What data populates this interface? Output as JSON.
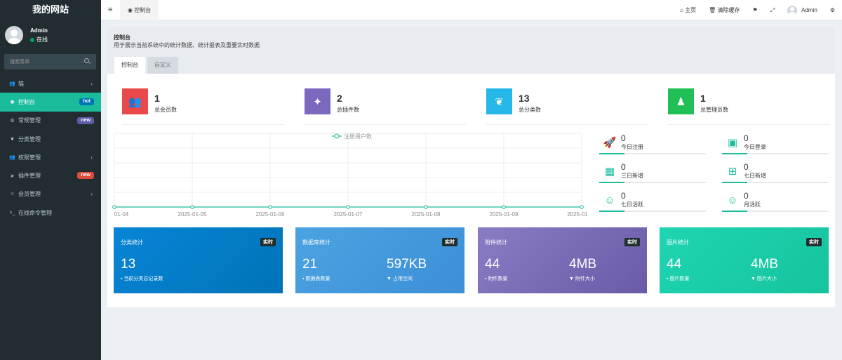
{
  "sidebar": {
    "logo": "我的网站",
    "user": {
      "name": "Admin",
      "status": "在线"
    },
    "search_placeholder": "搜索菜单",
    "items": [
      {
        "label": "猫",
        "icon": "users-icon",
        "glyph": "👥",
        "badge": "",
        "chevron": "‹"
      },
      {
        "label": "控制台",
        "icon": "dashboard-icon",
        "glyph": "◉",
        "badge": "hot",
        "badge_color": "#0073b7",
        "chevron": "",
        "active": true
      },
      {
        "label": "常规管理",
        "icon": "cogs-icon",
        "glyph": "⚙",
        "badge": "new",
        "badge_color": "#605ca8",
        "chevron": ""
      },
      {
        "label": "分类管理",
        "icon": "leaf-icon",
        "glyph": "❦",
        "badge": "",
        "chevron": ""
      },
      {
        "label": "权限管理",
        "icon": "group-icon",
        "glyph": "👥",
        "badge": "",
        "chevron": "‹"
      },
      {
        "label": "插件管理",
        "icon": "rocket-icon",
        "glyph": "➤",
        "badge": "new",
        "badge_color": "#dd4b39",
        "chevron": ""
      },
      {
        "label": "会员管理",
        "icon": "user-circle-icon",
        "glyph": "☺",
        "badge": "",
        "chevron": "‹"
      },
      {
        "label": "在线命令管理",
        "icon": "terminal-icon",
        "glyph": ">_",
        "badge": "",
        "chevron": ""
      }
    ]
  },
  "topbar": {
    "tab": "控制台",
    "home": "主页",
    "clear_cache": "清除缓存",
    "user": "Admin"
  },
  "header": {
    "title": "控制台",
    "desc": "用于展示当前系统中的统计数据、统计报表及重要实时数据",
    "tabs": [
      "控制台",
      "自定义"
    ]
  },
  "stats": [
    {
      "value": "1",
      "label": "总会员数",
      "color": "#e9494b",
      "icon": "users-icon",
      "glyph": "👥"
    },
    {
      "value": "2",
      "label": "总插件数",
      "color": "#7c69bf",
      "icon": "magic-icon",
      "glyph": "✦"
    },
    {
      "value": "13",
      "label": "总分类数",
      "color": "#24b7e8",
      "icon": "leaf-icon",
      "glyph": "❦"
    },
    {
      "value": "1",
      "label": "总管理员数",
      "color": "#20c057",
      "icon": "user-icon",
      "glyph": "♟"
    }
  ],
  "chart_data": {
    "type": "line",
    "legend": "注册用户数",
    "categories": [
      "2025-01-04",
      "2025-01-05",
      "2025-01-06",
      "2025-01-07",
      "2025-01-08",
      "2025-01-09",
      "2025-01-10"
    ],
    "tick_labels": [
      "01-04",
      "2025-01-05",
      "2025-01-06",
      "2025-01-07",
      "2025-01-08",
      "2025-01-09",
      "2025-01"
    ],
    "series": [
      {
        "name": "注册用户数",
        "values": [
          0,
          0,
          0,
          0,
          0,
          0,
          0
        ]
      }
    ],
    "color": "#18bc9c"
  },
  "mini_stats": [
    {
      "value": "0",
      "label": "今日注册",
      "icon": "rocket-icon",
      "glyph": "🚀"
    },
    {
      "value": "0",
      "label": "今日登录",
      "icon": "id-card-icon",
      "glyph": "▣"
    },
    {
      "value": "0",
      "label": "三日新增",
      "icon": "calendar-icon",
      "glyph": "▦"
    },
    {
      "value": "0",
      "label": "七日新增",
      "icon": "calendar-plus-icon",
      "glyph": "⊞"
    },
    {
      "value": "0",
      "label": "七日活跃",
      "icon": "user-circle-icon",
      "glyph": "☺"
    },
    {
      "value": "0",
      "label": "月活跃",
      "icon": "user-circle-icon",
      "glyph": "☺"
    }
  ],
  "cards": [
    {
      "title": "分类统计",
      "tag": "实时",
      "color1": "#0885d6",
      "color2": "#0073b7",
      "v1": "13",
      "s1": "当前分类总记录数",
      "v2": "",
      "s2": ""
    },
    {
      "title": "数据库统计",
      "tag": "实时",
      "color1": "#4ba3e2",
      "color2": "#3d8fd6",
      "v1": "21",
      "s1": "数据表数量",
      "v2": "597KB",
      "s2": "占用空间"
    },
    {
      "title": "附件统计",
      "tag": "实时",
      "color1": "#8a7cc4",
      "color2": "#6a5aa8",
      "v1": "44",
      "s1": "附件数量",
      "v2": "4MB",
      "s2": "附件大小"
    },
    {
      "title": "图片统计",
      "tag": "实时",
      "color1": "#1fd5b2",
      "color2": "#16c39e",
      "v1": "44",
      "s1": "图片数量",
      "v2": "4MB",
      "s2": "图片大小"
    }
  ]
}
